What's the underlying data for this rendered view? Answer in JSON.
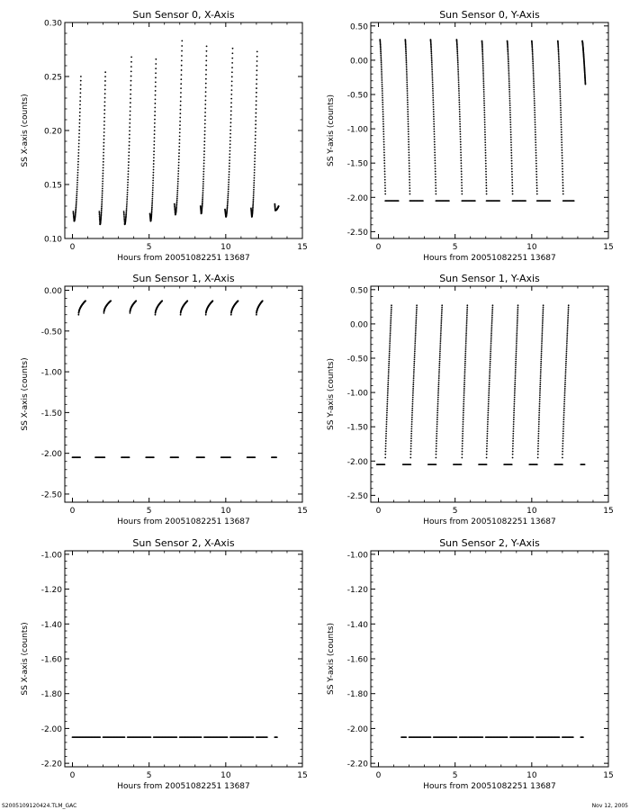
{
  "footer": {
    "left": "S2005109120424.TLM_GAC",
    "right": "Nov 12, 2005"
  },
  "chart_data": [
    {
      "type": "scatter",
      "title": "Sun Sensor 0, X-Axis",
      "xlabel": "Hours from 20051082251 13687",
      "ylabel": "SS X-axis (counts)",
      "xlim": [
        -0.5,
        15
      ],
      "ylim": [
        0.1,
        0.3
      ],
      "xticks": [
        0,
        5,
        10,
        15
      ],
      "yticks": [
        0.1,
        0.15,
        0.2,
        0.25,
        0.3
      ],
      "ytick_labels": [
        "0.10",
        "0.15",
        "0.20",
        "0.25",
        "0.30"
      ],
      "pattern": "rising",
      "cycles": [
        {
          "x_start": 0.05,
          "x_end": 0.55,
          "y_start": 0.125,
          "y_end": 0.25,
          "y_min": 0.116
        },
        {
          "x_start": 1.75,
          "x_end": 2.15,
          "y_start": 0.125,
          "y_end": 0.254,
          "y_min": 0.113
        },
        {
          "x_start": 3.35,
          "x_end": 3.85,
          "y_start": 0.125,
          "y_end": 0.268,
          "y_min": 0.113
        },
        {
          "x_start": 5.05,
          "x_end": 5.45,
          "y_start": 0.123,
          "y_end": 0.266,
          "y_min": 0.116
        },
        {
          "x_start": 6.65,
          "x_end": 7.15,
          "y_start": 0.132,
          "y_end": 0.283,
          "y_min": 0.122
        },
        {
          "x_start": 8.35,
          "x_end": 8.75,
          "y_start": 0.13,
          "y_end": 0.278,
          "y_min": 0.123
        },
        {
          "x_start": 9.95,
          "x_end": 10.45,
          "y_start": 0.127,
          "y_end": 0.276,
          "y_min": 0.12
        },
        {
          "x_start": 11.65,
          "x_end": 12.05,
          "y_start": 0.128,
          "y_end": 0.273,
          "y_min": 0.12
        },
        {
          "x_start": 13.2,
          "x_end": 13.45,
          "y_start": 0.132,
          "y_end": 0.13,
          "y_min": 0.126
        }
      ]
    },
    {
      "type": "scatter",
      "title": "Sun Sensor 0, Y-Axis",
      "xlabel": "Hours from 20051082251 13687",
      "ylabel": "SS Y-axis (counts)",
      "xlim": [
        -0.5,
        15
      ],
      "ylim": [
        -2.6,
        0.55
      ],
      "xticks": [
        0,
        5,
        10,
        15
      ],
      "yticks": [
        0.5,
        0.0,
        -0.5,
        -1.0,
        -1.5,
        -2.0,
        -2.5
      ],
      "ytick_labels": [
        "0.50",
        "0.00",
        "-0.50",
        "-1.00",
        "-1.50",
        "-2.00",
        "-2.50"
      ],
      "pattern": "falling",
      "floor": -2.05,
      "cycles": [
        {
          "x_start": 0.1,
          "x_end": 0.45,
          "y_start": 0.3,
          "y_end": -1.95
        },
        {
          "x_start": 1.75,
          "x_end": 2.05,
          "y_start": 0.3,
          "y_end": -1.95
        },
        {
          "x_start": 3.4,
          "x_end": 3.75,
          "y_start": 0.3,
          "y_end": -1.95
        },
        {
          "x_start": 5.1,
          "x_end": 5.45,
          "y_start": 0.3,
          "y_end": -1.95
        },
        {
          "x_start": 6.75,
          "x_end": 7.05,
          "y_start": 0.28,
          "y_end": -1.95
        },
        {
          "x_start": 8.4,
          "x_end": 8.75,
          "y_start": 0.28,
          "y_end": -1.95
        },
        {
          "x_start": 10.0,
          "x_end": 10.35,
          "y_start": 0.28,
          "y_end": -1.95
        },
        {
          "x_start": 11.7,
          "x_end": 12.05,
          "y_start": 0.28,
          "y_end": -1.95
        },
        {
          "x_start": 13.3,
          "x_end": 13.5,
          "y_start": 0.28,
          "y_end": -0.35,
          "no_floor": true
        }
      ],
      "floor_segments": [
        [
          0.45,
          1.3
        ],
        [
          2.05,
          2.9
        ],
        [
          3.75,
          4.6
        ],
        [
          5.45,
          6.3
        ],
        [
          7.05,
          7.9
        ],
        [
          8.75,
          9.6
        ],
        [
          10.35,
          11.2
        ],
        [
          12.05,
          12.75
        ]
      ]
    },
    {
      "type": "scatter",
      "title": "Sun Sensor 1, X-Axis",
      "xlabel": "Hours from 20051082251 13687",
      "ylabel": "SS X-axis (counts)",
      "xlim": [
        -0.5,
        15
      ],
      "ylim": [
        -2.6,
        0.05
      ],
      "xticks": [
        0,
        5,
        10,
        15
      ],
      "yticks": [
        0.0,
        -0.5,
        -1.0,
        -1.5,
        -2.0,
        -2.5
      ],
      "ytick_labels": [
        "0.00",
        "-0.50",
        "-1.00",
        "-1.50",
        "-2.00",
        "-2.50"
      ],
      "pattern": "arc",
      "floor": -2.05,
      "cycles": [
        {
          "x_start": 0.4,
          "x_end": 0.85,
          "y_start": -0.3,
          "y_end": -0.13
        },
        {
          "x_start": 2.05,
          "x_end": 2.5,
          "y_start": -0.28,
          "y_end": -0.13
        },
        {
          "x_start": 3.75,
          "x_end": 4.15,
          "y_start": -0.28,
          "y_end": -0.13
        },
        {
          "x_start": 5.4,
          "x_end": 5.85,
          "y_start": -0.3,
          "y_end": -0.13
        },
        {
          "x_start": 7.05,
          "x_end": 7.5,
          "y_start": -0.3,
          "y_end": -0.13
        },
        {
          "x_start": 8.7,
          "x_end": 9.15,
          "y_start": -0.3,
          "y_end": -0.13
        },
        {
          "x_start": 10.35,
          "x_end": 10.8,
          "y_start": -0.3,
          "y_end": -0.13
        },
        {
          "x_start": 12.0,
          "x_end": 12.4,
          "y_start": -0.3,
          "y_end": -0.13
        }
      ],
      "floor_segments": [
        [
          0.0,
          0.5
        ],
        [
          1.5,
          2.1
        ],
        [
          3.2,
          3.7
        ],
        [
          4.8,
          5.3
        ],
        [
          6.4,
          6.9
        ],
        [
          8.1,
          8.6
        ],
        [
          9.7,
          10.3
        ],
        [
          11.4,
          11.9
        ],
        [
          13.0,
          13.3
        ]
      ]
    },
    {
      "type": "scatter",
      "title": "Sun Sensor 1, Y-Axis",
      "xlabel": "Hours from 20051082251 13687",
      "ylabel": "SS Y-axis (counts)",
      "xlim": [
        -0.5,
        15
      ],
      "ylim": [
        -2.6,
        0.55
      ],
      "xticks": [
        0,
        5,
        10,
        15
      ],
      "yticks": [
        0.5,
        0.0,
        -0.5,
        -1.0,
        -1.5,
        -2.0,
        -2.5
      ],
      "ytick_labels": [
        "0.50",
        "0.00",
        "-0.50",
        "-1.00",
        "-1.50",
        "-2.00",
        "-2.50"
      ],
      "pattern": "rising-tall",
      "floor": -2.05,
      "cycles": [
        {
          "x_start": 0.45,
          "x_end": 0.85,
          "y_start": -1.95,
          "y_end": 0.27
        },
        {
          "x_start": 2.1,
          "x_end": 2.5,
          "y_start": -1.95,
          "y_end": 0.27
        },
        {
          "x_start": 3.75,
          "x_end": 4.15,
          "y_start": -1.95,
          "y_end": 0.27
        },
        {
          "x_start": 5.45,
          "x_end": 5.8,
          "y_start": -1.95,
          "y_end": 0.27
        },
        {
          "x_start": 7.05,
          "x_end": 7.45,
          "y_start": -1.95,
          "y_end": 0.27
        },
        {
          "x_start": 8.75,
          "x_end": 9.1,
          "y_start": -1.95,
          "y_end": 0.27
        },
        {
          "x_start": 10.4,
          "x_end": 10.75,
          "y_start": -1.95,
          "y_end": 0.27
        },
        {
          "x_start": 12.0,
          "x_end": 12.4,
          "y_start": -1.95,
          "y_end": 0.27
        }
      ],
      "floor_segments": [
        [
          -0.1,
          0.4
        ],
        [
          1.6,
          2.1
        ],
        [
          3.25,
          3.75
        ],
        [
          4.9,
          5.4
        ],
        [
          6.55,
          7.05
        ],
        [
          8.2,
          8.7
        ],
        [
          9.85,
          10.35
        ],
        [
          11.5,
          12.0
        ],
        [
          13.2,
          13.45
        ]
      ]
    },
    {
      "type": "scatter",
      "title": "Sun Sensor 2, X-Axis",
      "xlabel": "Hours from 20051082251 13687",
      "ylabel": "SS X-axis (counts)",
      "xlim": [
        -0.5,
        15
      ],
      "ylim": [
        -2.22,
        -0.98
      ],
      "xticks": [
        0,
        5,
        10,
        15
      ],
      "yticks": [
        -1.0,
        -1.2,
        -1.4,
        -1.6,
        -1.8,
        -2.0,
        -2.2
      ],
      "ytick_labels": [
        "-1.00",
        "-1.20",
        "-1.40",
        "-1.60",
        "-1.80",
        "-2.00",
        "-2.20"
      ],
      "pattern": "flat",
      "floor": -2.05,
      "floor_segments": [
        [
          0.0,
          1.8
        ],
        [
          2.0,
          3.4
        ],
        [
          3.6,
          5.1
        ],
        [
          5.3,
          6.8
        ],
        [
          7.0,
          8.4
        ],
        [
          8.6,
          10.1
        ],
        [
          10.3,
          11.8
        ],
        [
          12.0,
          12.7
        ],
        [
          13.2,
          13.35
        ]
      ]
    },
    {
      "type": "scatter",
      "title": "Sun Sensor 2, Y-Axis",
      "xlabel": "Hours from 20051082251 13687",
      "ylabel": "SS Y-axis (counts)",
      "xlim": [
        -0.5,
        15
      ],
      "ylim": [
        -2.22,
        -0.98
      ],
      "xticks": [
        0,
        5,
        10,
        15
      ],
      "yticks": [
        -1.0,
        -1.2,
        -1.4,
        -1.6,
        -1.8,
        -2.0,
        -2.2
      ],
      "ytick_labels": [
        "-1.00",
        "-1.20",
        "-1.40",
        "-1.60",
        "-1.80",
        "-2.00",
        "-2.20"
      ],
      "pattern": "flat",
      "floor": -2.05,
      "floor_segments": [
        [
          1.5,
          1.8
        ],
        [
          2.0,
          3.4
        ],
        [
          3.6,
          5.1
        ],
        [
          5.3,
          6.8
        ],
        [
          7.0,
          8.4
        ],
        [
          8.6,
          10.1
        ],
        [
          10.3,
          11.8
        ],
        [
          12.0,
          12.7
        ],
        [
          13.2,
          13.35
        ]
      ]
    }
  ]
}
